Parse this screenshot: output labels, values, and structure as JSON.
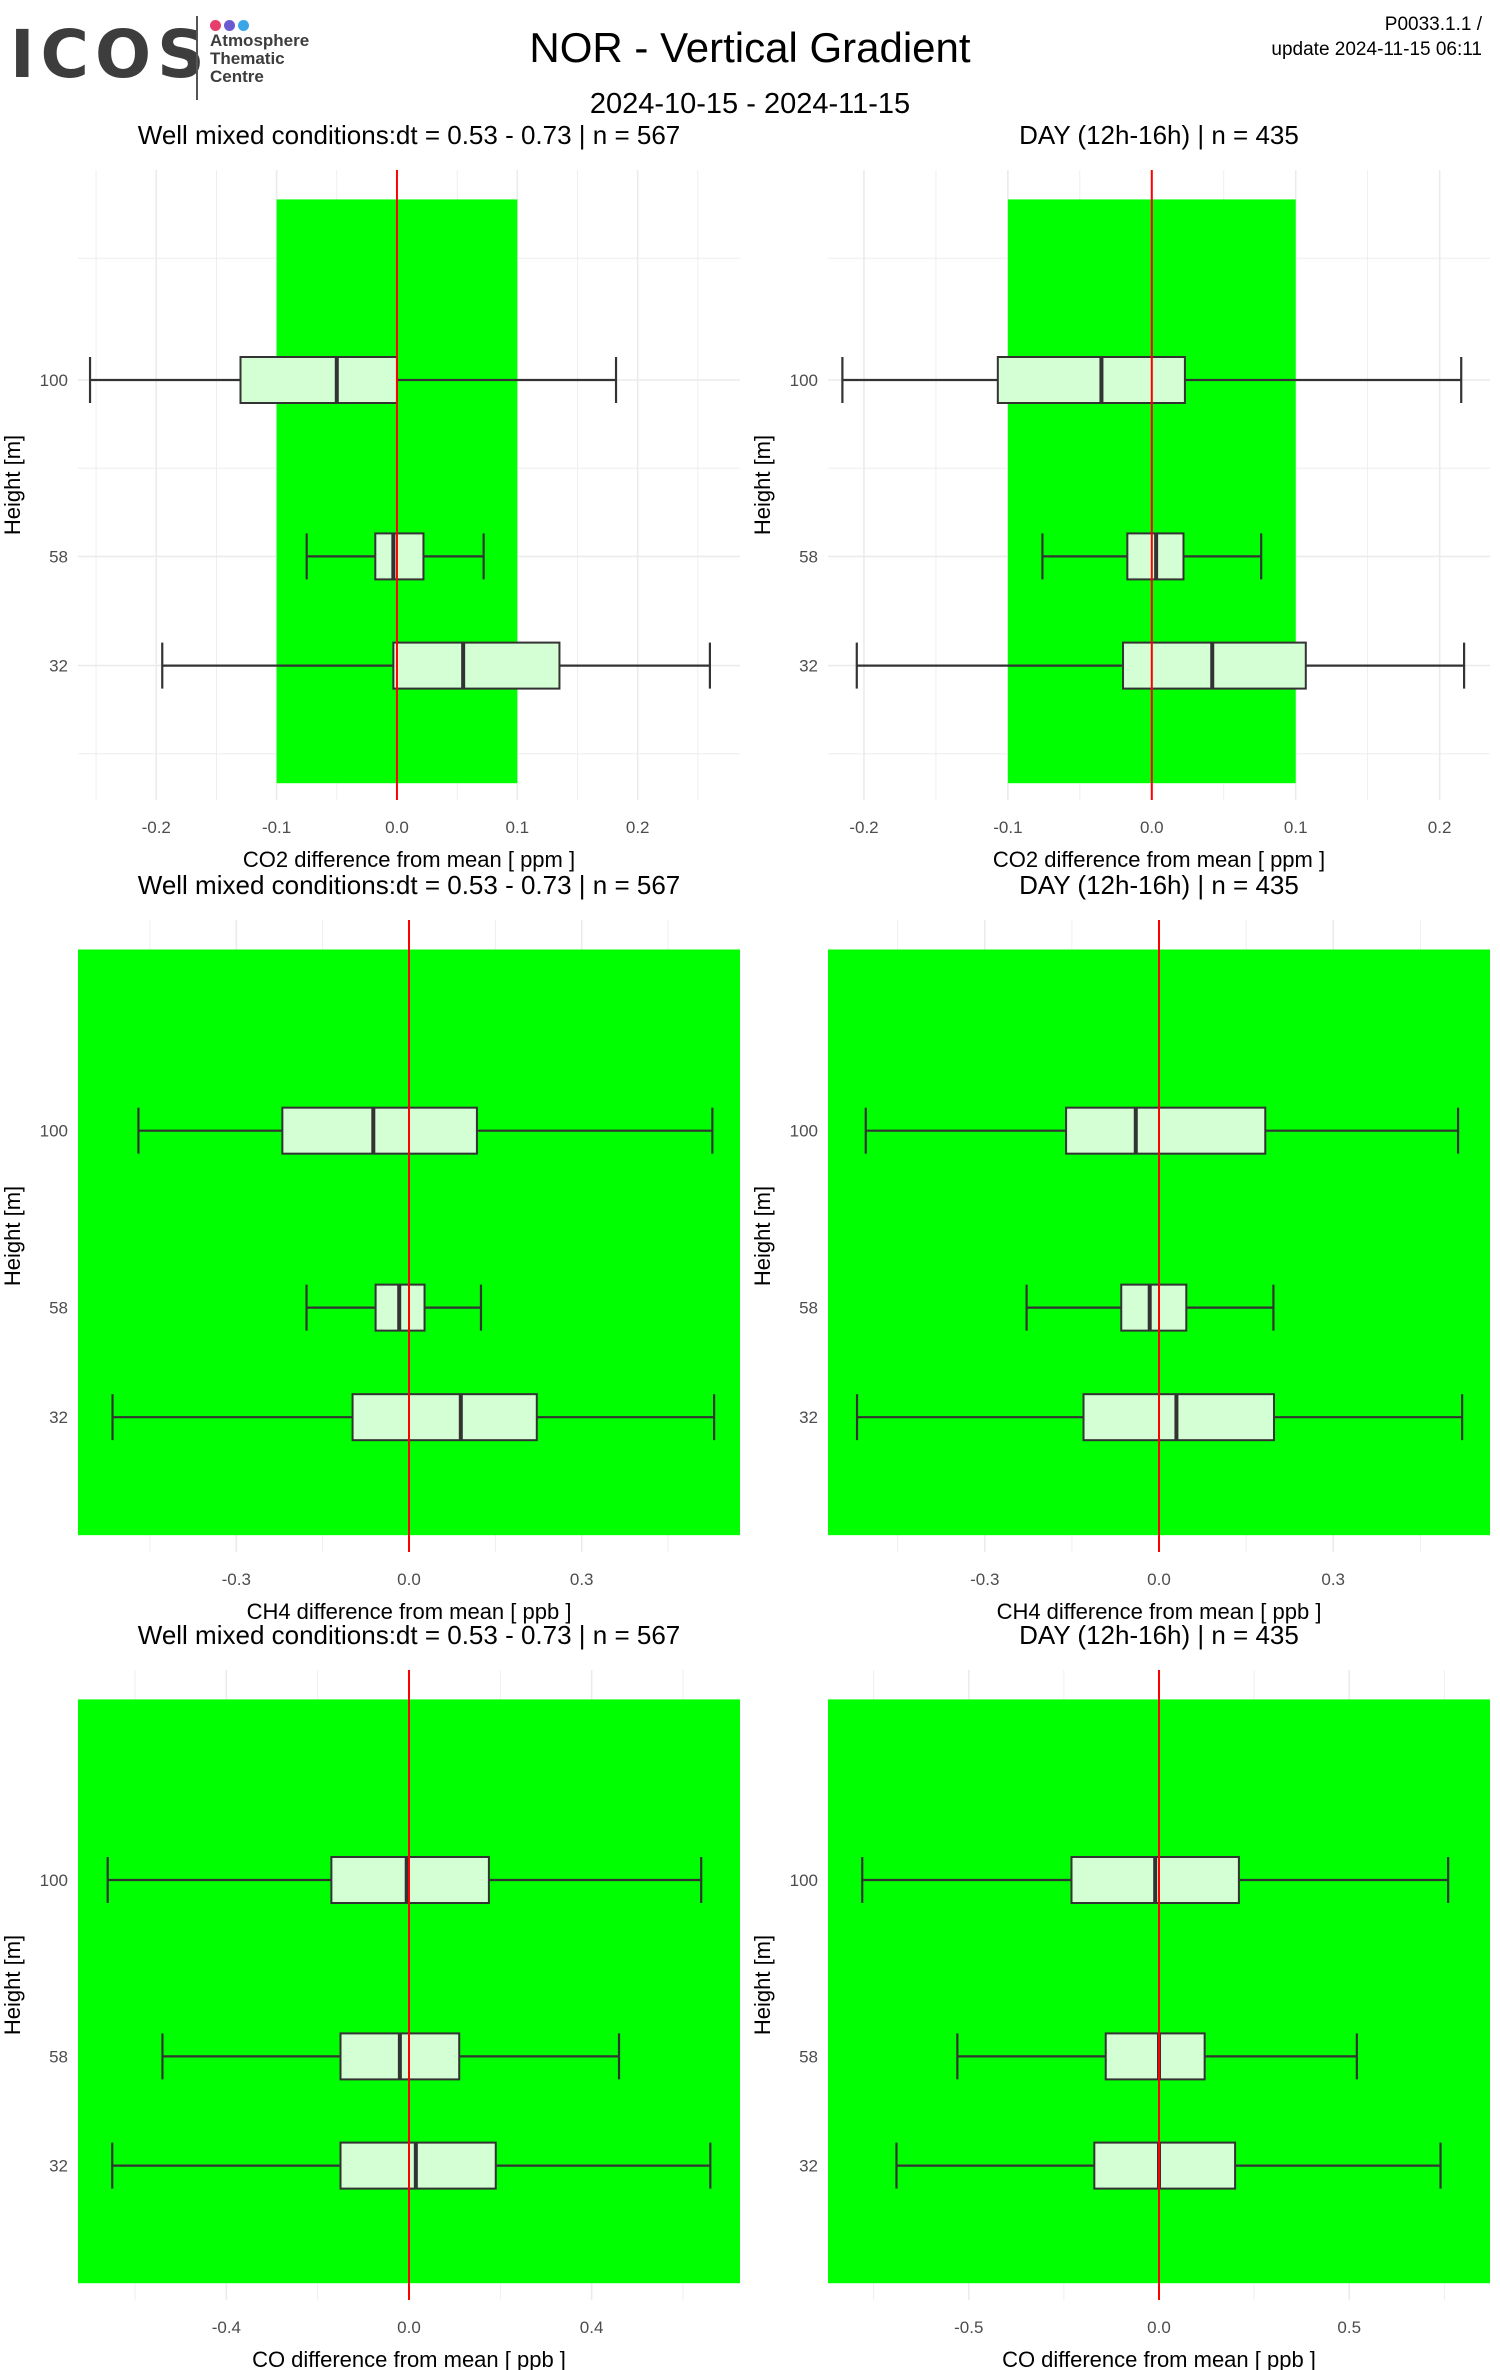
{
  "header": {
    "logo_text": "ICOS",
    "logo_line1": "Atmosphere",
    "logo_line2": "Thematic",
    "logo_line3": "Centre",
    "logo_dot_colors": [
      "#e83e6c",
      "#6b5bd1",
      "#3aa6e8"
    ],
    "title": "NOR - Vertical Gradient",
    "date_range": "2024-10-15 - 2024-11-15",
    "version": "P0033.1.1 /",
    "update": "update  2024-11-15 06:11"
  },
  "colors": {
    "band": "#00ff00",
    "box_fill": "#ccffcc",
    "mean_line": "#ff0000",
    "grid": "#ebebeb"
  },
  "chart_data": [
    {
      "type": "boxplot",
      "orientation": "horizontal",
      "title": "Well mixed conditions:dt = 0.53 - 0.73 | n = 567",
      "xlabel": "CO2  difference from mean [ ppm ]",
      "ylabel": "Height [m]",
      "xlim": [
        -0.265,
        0.285
      ],
      "x_ticks": [
        -0.2,
        -0.1,
        0.0,
        0.1,
        0.2
      ],
      "x_tick_labels": [
        "-0.2",
        "-0.1",
        "0.0",
        "0.1",
        "0.2"
      ],
      "ylim": [
        0,
        150
      ],
      "categories": [
        "100",
        "58",
        "32"
      ],
      "band": [
        -0.1,
        0.1
      ],
      "boxes": [
        {
          "height": 100,
          "whisker_low": -0.255,
          "q1": -0.13,
          "median": -0.05,
          "q3": 0.0,
          "whisker_high": 0.182
        },
        {
          "height": 58,
          "whisker_low": -0.075,
          "q1": -0.018,
          "median": -0.003,
          "q3": 0.022,
          "whisker_high": 0.072
        },
        {
          "height": 32,
          "whisker_low": -0.195,
          "q1": -0.003,
          "median": 0.055,
          "q3": 0.135,
          "whisker_high": 0.26
        }
      ],
      "mean_line": 0.0
    },
    {
      "type": "boxplot",
      "orientation": "horizontal",
      "title": "DAY (12h-16h) | n = 435",
      "xlabel": "CO2  difference from mean [ ppm ]",
      "ylabel": "Height [m]",
      "xlim": [
        -0.225,
        0.235
      ],
      "x_ticks": [
        -0.2,
        -0.1,
        0.0,
        0.1,
        0.2
      ],
      "x_tick_labels": [
        "-0.2",
        "-0.1",
        "0.0",
        "0.1",
        "0.2"
      ],
      "ylim": [
        0,
        150
      ],
      "categories": [
        "100",
        "58",
        "32"
      ],
      "band": [
        -0.1,
        0.1
      ],
      "boxes": [
        {
          "height": 100,
          "whisker_low": -0.215,
          "q1": -0.107,
          "median": -0.035,
          "q3": 0.023,
          "whisker_high": 0.215
        },
        {
          "height": 58,
          "whisker_low": -0.076,
          "q1": -0.017,
          "median": 0.003,
          "q3": 0.022,
          "whisker_high": 0.076
        },
        {
          "height": 32,
          "whisker_low": -0.205,
          "q1": -0.02,
          "median": 0.042,
          "q3": 0.107,
          "whisker_high": 0.217
        }
      ],
      "mean_line": 0.0
    },
    {
      "type": "boxplot",
      "orientation": "horizontal",
      "title": "Well mixed conditions:dt = 0.53 - 0.73 | n = 567",
      "xlabel": "CH4  difference from mean [ ppb ]",
      "ylabel": "Height [m]",
      "xlim": [
        -0.575,
        0.575
      ],
      "x_ticks": [
        -0.3,
        0.0,
        0.3
      ],
      "x_tick_labels": [
        "-0.3",
        "0.0",
        "0.3"
      ],
      "ylim": [
        0,
        150
      ],
      "categories": [
        "100",
        "58",
        "32"
      ],
      "band": [
        -0.575,
        0.575
      ],
      "boxes": [
        {
          "height": 100,
          "whisker_low": -0.47,
          "q1": -0.22,
          "median": -0.062,
          "q3": 0.118,
          "whisker_high": 0.527
        },
        {
          "height": 58,
          "whisker_low": -0.178,
          "q1": -0.058,
          "median": -0.017,
          "q3": 0.027,
          "whisker_high": 0.125
        },
        {
          "height": 32,
          "whisker_low": -0.515,
          "q1": -0.098,
          "median": 0.09,
          "q3": 0.222,
          "whisker_high": 0.53
        }
      ],
      "mean_line": 0.0
    },
    {
      "type": "boxplot",
      "orientation": "horizontal",
      "title": "DAY (12h-16h) | n = 435",
      "xlabel": "CH4  difference from mean [ ppb ]",
      "ylabel": "Height [m]",
      "xlim": [
        -0.57,
        0.57
      ],
      "x_ticks": [
        -0.3,
        0.0,
        0.3
      ],
      "x_tick_labels": [
        "-0.3",
        "0.0",
        "0.3"
      ],
      "ylim": [
        0,
        150
      ],
      "categories": [
        "100",
        "58",
        "32"
      ],
      "band": [
        -0.57,
        0.57
      ],
      "boxes": [
        {
          "height": 100,
          "whisker_low": -0.505,
          "q1": -0.16,
          "median": -0.04,
          "q3": 0.183,
          "whisker_high": 0.515
        },
        {
          "height": 58,
          "whisker_low": -0.228,
          "q1": -0.065,
          "median": -0.016,
          "q3": 0.047,
          "whisker_high": 0.197
        },
        {
          "height": 32,
          "whisker_low": -0.52,
          "q1": -0.13,
          "median": 0.03,
          "q3": 0.198,
          "whisker_high": 0.522
        }
      ],
      "mean_line": 0.0
    },
    {
      "type": "boxplot",
      "orientation": "horizontal",
      "title": "Well mixed conditions:dt = 0.53 - 0.73 | n = 567",
      "xlabel": "CO  difference from mean [ ppb ]",
      "ylabel": "Height [m]",
      "xlim": [
        -0.725,
        0.725
      ],
      "x_ticks": [
        -0.4,
        0.0,
        0.4
      ],
      "x_tick_labels": [
        "-0.4",
        "0.0",
        "0.4"
      ],
      "ylim": [
        0,
        150
      ],
      "categories": [
        "100",
        "58",
        "32"
      ],
      "band": [
        -0.725,
        0.725
      ],
      "boxes": [
        {
          "height": 100,
          "whisker_low": -0.66,
          "q1": -0.17,
          "median": -0.005,
          "q3": 0.175,
          "whisker_high": 0.64
        },
        {
          "height": 58,
          "whisker_low": -0.54,
          "q1": -0.15,
          "median": -0.02,
          "q3": 0.11,
          "whisker_high": 0.46
        },
        {
          "height": 32,
          "whisker_low": -0.65,
          "q1": -0.15,
          "median": 0.015,
          "q3": 0.19,
          "whisker_high": 0.66
        }
      ],
      "mean_line": 0.0
    },
    {
      "type": "boxplot",
      "orientation": "horizontal",
      "title": "DAY (12h-16h) | n = 435",
      "xlabel": "CO  difference from mean [ ppb ]",
      "ylabel": "Height [m]",
      "xlim": [
        -0.87,
        0.87
      ],
      "x_ticks": [
        -0.5,
        0.0,
        0.5
      ],
      "x_tick_labels": [
        "-0.5",
        "0.0",
        "0.5"
      ],
      "ylim": [
        0,
        150
      ],
      "categories": [
        "100",
        "58",
        "32"
      ],
      "band": [
        -0.87,
        0.87
      ],
      "boxes": [
        {
          "height": 100,
          "whisker_low": -0.78,
          "q1": -0.23,
          "median": -0.01,
          "q3": 0.21,
          "whisker_high": 0.76
        },
        {
          "height": 58,
          "whisker_low": -0.53,
          "q1": -0.14,
          "median": 0.0,
          "q3": 0.12,
          "whisker_high": 0.52
        },
        {
          "height": 32,
          "whisker_low": -0.69,
          "q1": -0.17,
          "median": 0.0,
          "q3": 0.2,
          "whisker_high": 0.74
        }
      ],
      "mean_line": 0.0
    }
  ]
}
